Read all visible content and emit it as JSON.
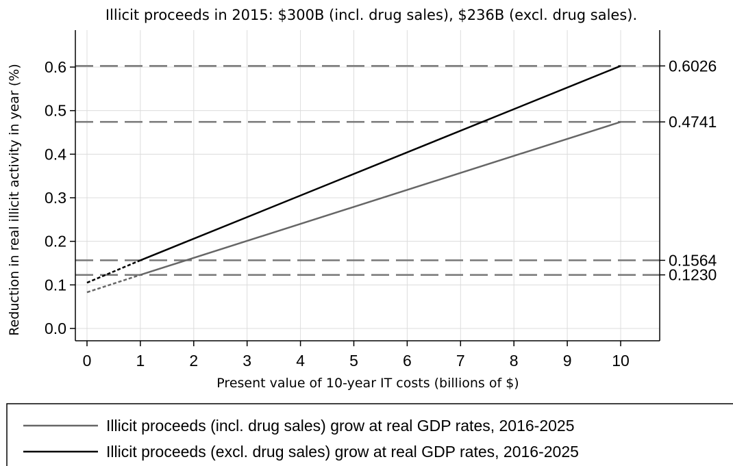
{
  "chart_data": {
    "type": "line",
    "title": "Illicit proceeds in 2015: $300B (incl. drug sales), $236B (excl. drug sales).",
    "xlabel": "Present value of 10-year IT costs (billions of $)",
    "ylabel": "Reduction in real illicit activity in year (%)",
    "xlim": [
      0,
      10
    ],
    "ylim": [
      0,
      0.6
    ],
    "x_ticks": [
      "0",
      "1",
      "2",
      "3",
      "4",
      "5",
      "6",
      "7",
      "8",
      "9",
      "10"
    ],
    "y_ticks": [
      "0.0",
      "0.1",
      "0.2",
      "0.3",
      "0.4",
      "0.5",
      "0.6"
    ],
    "grid": true,
    "series": [
      {
        "name": "Illicit proceeds (incl. drug sales) grow at real GDP rates, 2016-2025",
        "color": "#666666",
        "x": [
          0,
          1,
          10
        ],
        "y": [
          0.083,
          0.123,
          0.4741
        ],
        "dashed_until_x": 1
      },
      {
        "name": "Illicit proceeds (excl. drug sales) grow at real GDP rates, 2016-2025",
        "color": "#000000",
        "x": [
          0,
          1,
          10
        ],
        "y": [
          0.105,
          0.1564,
          0.6026
        ],
        "dashed_until_x": 1
      }
    ],
    "reference_lines": [
      {
        "y": 0.6026,
        "label": "0.6026"
      },
      {
        "y": 0.4741,
        "label": "0.4741"
      },
      {
        "y": 0.1564,
        "label": "0.1564"
      },
      {
        "y": 0.123,
        "label": "0.1230"
      }
    ],
    "legend_position": "bottom"
  }
}
